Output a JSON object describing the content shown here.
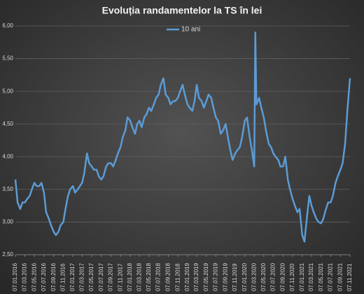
{
  "chart_data": {
    "type": "line",
    "title": "Evoluția randamentelor la TS în lei",
    "x": [
      "07.01.2016",
      "21.01.2016",
      "07.02.2016",
      "21.02.2016",
      "07.03.2016",
      "21.03.2016",
      "07.04.2016",
      "21.04.2016",
      "07.05.2016",
      "21.05.2016",
      "07.06.2016",
      "21.06.2016",
      "07.07.2016",
      "21.07.2016",
      "07.08.2016",
      "21.08.2016",
      "07.09.2016",
      "21.09.2016",
      "07.10.2016",
      "21.10.2016",
      "07.11.2016",
      "21.11.2016",
      "07.12.2016",
      "21.12.2016",
      "07.01.2017",
      "21.01.2017",
      "07.02.2017",
      "21.02.2017",
      "07.03.2017",
      "21.03.2017",
      "07.04.2017",
      "21.04.2017",
      "07.05.2017",
      "21.05.2017",
      "07.06.2017",
      "21.06.2017",
      "07.07.2017",
      "21.07.2017",
      "07.08.2017",
      "21.08.2017",
      "07.09.2017",
      "21.09.2017",
      "07.10.2017",
      "21.10.2017",
      "07.11.2017",
      "21.11.2017",
      "07.12.2017",
      "21.12.2017",
      "07.01.2018",
      "21.01.2018",
      "07.02.2018",
      "21.02.2018",
      "07.03.2018",
      "21.03.2018",
      "07.04.2018",
      "21.04.2018",
      "07.05.2018",
      "21.05.2018",
      "07.06.2018",
      "21.06.2018",
      "07.07.2018",
      "21.07.2018",
      "07.08.2018",
      "21.08.2018",
      "07.09.2018",
      "21.09.2018",
      "07.10.2018",
      "21.10.2018",
      "07.11.2018",
      "21.11.2018",
      "07.12.2018",
      "21.12.2018",
      "07.01.2019",
      "21.01.2019",
      "07.02.2019",
      "21.02.2019",
      "07.03.2019",
      "21.03.2019",
      "07.04.2019",
      "21.04.2019",
      "07.05.2019",
      "21.05.2019",
      "07.06.2019",
      "21.06.2019",
      "07.07.2019",
      "21.07.2019",
      "07.08.2019",
      "21.08.2019",
      "07.09.2019",
      "21.09.2019",
      "07.10.2019",
      "21.10.2019",
      "07.11.2019",
      "21.11.2019",
      "07.12.2019",
      "21.12.2019",
      "07.01.2020",
      "21.01.2020",
      "07.02.2020",
      "21.02.2020",
      "07.03.2020",
      "14.03.2020",
      "21.03.2020",
      "07.04.2020",
      "21.04.2020",
      "07.05.2020",
      "21.05.2020",
      "07.06.2020",
      "21.06.2020",
      "07.07.2020",
      "21.07.2020",
      "07.08.2020",
      "21.08.2020",
      "07.09.2020",
      "21.09.2020",
      "07.10.2020",
      "21.10.2020",
      "07.11.2020",
      "21.11.2020",
      "07.12.2020",
      "21.12.2020",
      "07.01.2021",
      "21.01.2021",
      "07.02.2021",
      "21.02.2021",
      "07.03.2021",
      "21.03.2021",
      "07.04.2021",
      "21.04.2021",
      "07.05.2021",
      "21.05.2021",
      "07.06.2021",
      "21.06.2021",
      "07.07.2021",
      "21.07.2021",
      "07.08.2021",
      "21.08.2021",
      "07.09.2021",
      "21.09.2021",
      "07.10.2021",
      "21.10.2021",
      "07.11.2021"
    ],
    "series": [
      {
        "name": "10 ani",
        "color": "#5b9bd5",
        "values": [
          3.65,
          3.3,
          3.2,
          3.3,
          3.3,
          3.35,
          3.4,
          3.5,
          3.6,
          3.55,
          3.55,
          3.6,
          3.45,
          3.15,
          3.05,
          2.95,
          2.85,
          2.8,
          2.85,
          2.95,
          3.0,
          3.2,
          3.4,
          3.5,
          3.55,
          3.45,
          3.5,
          3.55,
          3.6,
          3.75,
          4.05,
          3.9,
          3.85,
          3.8,
          3.8,
          3.7,
          3.65,
          3.7,
          3.85,
          3.9,
          3.9,
          3.85,
          3.95,
          4.05,
          4.15,
          4.3,
          4.4,
          4.6,
          4.55,
          4.45,
          4.35,
          4.5,
          4.55,
          4.45,
          4.6,
          4.65,
          4.75,
          4.7,
          4.8,
          4.9,
          4.95,
          5.1,
          5.2,
          4.95,
          4.9,
          4.8,
          4.85,
          4.85,
          4.9,
          5.0,
          5.1,
          4.95,
          4.8,
          4.75,
          4.7,
          4.85,
          5.1,
          4.9,
          4.85,
          4.75,
          4.85,
          4.95,
          4.9,
          4.75,
          4.6,
          4.55,
          4.35,
          4.4,
          4.5,
          4.3,
          4.1,
          3.95,
          4.05,
          4.1,
          4.15,
          4.3,
          4.55,
          4.6,
          4.3,
          4.1,
          3.85,
          5.9,
          4.8,
          4.9,
          4.75,
          4.6,
          4.4,
          4.2,
          4.15,
          4.05,
          4.0,
          3.95,
          3.85,
          3.85,
          4.0,
          3.65,
          3.5,
          3.35,
          3.25,
          3.15,
          3.2,
          2.8,
          2.7,
          3.1,
          3.4,
          3.25,
          3.15,
          3.05,
          3.0,
          2.98,
          3.05,
          3.2,
          3.3,
          3.3,
          3.4,
          3.6,
          3.7,
          3.8,
          3.9,
          4.2,
          4.7,
          5.2
        ]
      }
    ],
    "xlim": [
      "07.01.2016",
      "07.11.2021"
    ],
    "xticks": [
      "07.01.2016",
      "07.03.2016",
      "07.05.2016",
      "07.07.2016",
      "07.09.2016",
      "07.11.2016",
      "07.01.2017",
      "07.03.2017",
      "07.05.2017",
      "07.07.2017",
      "07.09.2017",
      "07.11.2017",
      "07.01.2018",
      "07.03.2018",
      "07.05.2018",
      "07.07.2018",
      "07.09.2018",
      "07.11.2018",
      "07.01.2019",
      "07.03.2019",
      "07.05.2019",
      "07.07.2019",
      "07.09.2019",
      "07.11.2019",
      "07.01.2020",
      "07.03.2020",
      "07.05.2020",
      "07.07.2020",
      "07.09.2020",
      "07.11.2020",
      "07.01.2021",
      "07.03.2021",
      "07.05.2021",
      "07.07.2021",
      "07.09.2021",
      "07.11.2021"
    ],
    "ylim": [
      2.5,
      6.0
    ],
    "yticks": [
      {
        "value": 2.5,
        "label": "2,50"
      },
      {
        "value": 3.0,
        "label": "3,00"
      },
      {
        "value": 3.5,
        "label": "3,50"
      },
      {
        "value": 4.0,
        "label": "4,00"
      },
      {
        "value": 4.5,
        "label": "4,50"
      },
      {
        "value": 5.0,
        "label": "5,00"
      },
      {
        "value": 5.5,
        "label": "5,50"
      },
      {
        "value": 6.0,
        "label": "6,00"
      }
    ],
    "grid": true,
    "legend": "top"
  }
}
